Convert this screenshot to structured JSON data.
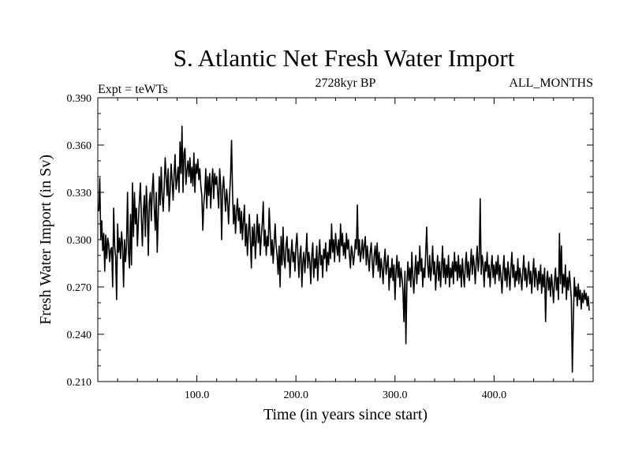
{
  "chart_data": {
    "type": "line",
    "title": "S. Atlantic Net Fresh Water Import",
    "subtitle_left": "Expt = teWTs",
    "subtitle_center": "2728kyr BP",
    "subtitle_right": "ALL_MONTHS",
    "xlabel": "Time (in years since start)",
    "ylabel": "Fresh Water Import (in Sv)",
    "xlim": [
      0,
      500
    ],
    "ylim": [
      0.21,
      0.39
    ],
    "x_ticks": [
      100,
      200,
      300,
      400
    ],
    "x_tick_labels": [
      "100.0",
      "200.0",
      "300.0",
      "400.0"
    ],
    "y_ticks": [
      0.21,
      0.24,
      0.27,
      0.3,
      0.33,
      0.36,
      0.39
    ],
    "y_tick_labels": [
      "0.210",
      "0.240",
      "0.270",
      "0.300",
      "0.330",
      "0.360",
      "0.390"
    ],
    "grid": false,
    "series": [
      {
        "name": "Fresh Water Import",
        "x_start": 1,
        "x_step": 1,
        "values": [
          0.318,
          0.339,
          0.3,
          0.312,
          0.293,
          0.304,
          0.28,
          0.303,
          0.288,
          0.301,
          0.297,
          0.286,
          0.294,
          0.295,
          0.27,
          0.32,
          0.296,
          0.289,
          0.262,
          0.31,
          0.292,
          0.301,
          0.288,
          0.305,
          0.296,
          0.27,
          0.3,
          0.286,
          0.296,
          0.33,
          0.292,
          0.282,
          0.316,
          0.284,
          0.336,
          0.302,
          0.33,
          0.31,
          0.32,
          0.296,
          0.312,
          0.325,
          0.336,
          0.314,
          0.296,
          0.318,
          0.328,
          0.302,
          0.334,
          0.318,
          0.29,
          0.324,
          0.33,
          0.312,
          0.332,
          0.342,
          0.32,
          0.306,
          0.33,
          0.292,
          0.316,
          0.34,
          0.322,
          0.346,
          0.328,
          0.318,
          0.333,
          0.352,
          0.34,
          0.328,
          0.345,
          0.318,
          0.331,
          0.348,
          0.338,
          0.325,
          0.341,
          0.354,
          0.332,
          0.338,
          0.346,
          0.33,
          0.362,
          0.342,
          0.372,
          0.33,
          0.355,
          0.358,
          0.335,
          0.344,
          0.35,
          0.34,
          0.352,
          0.336,
          0.346,
          0.334,
          0.355,
          0.33,
          0.348,
          0.342,
          0.351,
          0.338,
          0.345,
          0.334,
          0.328,
          0.306,
          0.323,
          0.33,
          0.345,
          0.32,
          0.34,
          0.328,
          0.342,
          0.32,
          0.336,
          0.345,
          0.326,
          0.342,
          0.335,
          0.34,
          0.33,
          0.32,
          0.345,
          0.335,
          0.3,
          0.332,
          0.34,
          0.328,
          0.318,
          0.332,
          0.324,
          0.31,
          0.328,
          0.34,
          0.363,
          0.33,
          0.31,
          0.322,
          0.304,
          0.318,
          0.326,
          0.312,
          0.32,
          0.304,
          0.318,
          0.3,
          0.312,
          0.322,
          0.296,
          0.31,
          0.29,
          0.304,
          0.316,
          0.3,
          0.282,
          0.308,
          0.296,
          0.31,
          0.288,
          0.3,
          0.316,
          0.298,
          0.31,
          0.29,
          0.302,
          0.31,
          0.324,
          0.296,
          0.306,
          0.29,
          0.302,
          0.296,
          0.32,
          0.305,
          0.29,
          0.3,
          0.285,
          0.298,
          0.31,
          0.296,
          0.29,
          0.278,
          0.296,
          0.27,
          0.302,
          0.284,
          0.308,
          0.288,
          0.282,
          0.296,
          0.302,
          0.286,
          0.294,
          0.276,
          0.29,
          0.3,
          0.286,
          0.292,
          0.28,
          0.296,
          0.304,
          0.29,
          0.276,
          0.29,
          0.296,
          0.27,
          0.286,
          0.292,
          0.279,
          0.29,
          0.304,
          0.282,
          0.292,
          0.286,
          0.272,
          0.29,
          0.298,
          0.276,
          0.288,
          0.282,
          0.296,
          0.274,
          0.288,
          0.3,
          0.284,
          0.29,
          0.276,
          0.294,
          0.288,
          0.298,
          0.28,
          0.292,
          0.284,
          0.3,
          0.288,
          0.31,
          0.292,
          0.3,
          0.286,
          0.304,
          0.296,
          0.29,
          0.3,
          0.286,
          0.31,
          0.296,
          0.304,
          0.29,
          0.298,
          0.288,
          0.304,
          0.294,
          0.3,
          0.29,
          0.282,
          0.296,
          0.292,
          0.284,
          0.29,
          0.3,
          0.294,
          0.322,
          0.29,
          0.3,
          0.286,
          0.292,
          0.3,
          0.288,
          0.296,
          0.302,
          0.284,
          0.296,
          0.288,
          0.28,
          0.292,
          0.298,
          0.286,
          0.276,
          0.29,
          0.296,
          0.284,
          0.298,
          0.28,
          0.292,
          0.276,
          0.288,
          0.282,
          0.272,
          0.286,
          0.294,
          0.278,
          0.284,
          0.29,
          0.268,
          0.282,
          0.276,
          0.288,
          0.274,
          0.284,
          0.262,
          0.28,
          0.29,
          0.276,
          0.286,
          0.27,
          0.282,
          0.276,
          0.268,
          0.248,
          0.28,
          0.234,
          0.272,
          0.286,
          0.274,
          0.282,
          0.27,
          0.292,
          0.276,
          0.266,
          0.28,
          0.29,
          0.272,
          0.286,
          0.278,
          0.296,
          0.28,
          0.288,
          0.27,
          0.282,
          0.276,
          0.292,
          0.308,
          0.284,
          0.276,
          0.29,
          0.274,
          0.282,
          0.296,
          0.278,
          0.286,
          0.268,
          0.28,
          0.29,
          0.274,
          0.286,
          0.27,
          0.282,
          0.296,
          0.276,
          0.288,
          0.272,
          0.284,
          0.276,
          0.29,
          0.27,
          0.282,
          0.276,
          0.286,
          0.272,
          0.292,
          0.28,
          0.286,
          0.274,
          0.29,
          0.276,
          0.284,
          0.27,
          0.288,
          0.278,
          0.27,
          0.284,
          0.292,
          0.276,
          0.286,
          0.274,
          0.282,
          0.294,
          0.278,
          0.29,
          0.284,
          0.272,
          0.286,
          0.296,
          0.28,
          0.288,
          0.326,
          0.278,
          0.29,
          0.284,
          0.27,
          0.286,
          0.28,
          0.292,
          0.276,
          0.284,
          0.27,
          0.282,
          0.29,
          0.276,
          0.284,
          0.272,
          0.286,
          0.278,
          0.29,
          0.274,
          0.284,
          0.276,
          0.266,
          0.28,
          0.29,
          0.274,
          0.282,
          0.27,
          0.286,
          0.278,
          0.268,
          0.282,
          0.292,
          0.276,
          0.284,
          0.27,
          0.28,
          0.274,
          0.288,
          0.272,
          0.282,
          0.276,
          0.268,
          0.28,
          0.29,
          0.274,
          0.282,
          0.27,
          0.278,
          0.286,
          0.272,
          0.28,
          0.266,
          0.278,
          0.288,
          0.27,
          0.282,
          0.276,
          0.268,
          0.28,
          0.272,
          0.284,
          0.266,
          0.278,
          0.27,
          0.282,
          0.248,
          0.274,
          0.28,
          0.268,
          0.276,
          0.264,
          0.278,
          0.27,
          0.26,
          0.274,
          0.282,
          0.268,
          0.276,
          0.262,
          0.304,
          0.272,
          0.296,
          0.266,
          0.278,
          0.27,
          0.284,
          0.262,
          0.276,
          0.268,
          0.28,
          0.272,
          0.262,
          0.216,
          0.248,
          0.276,
          0.264,
          0.27,
          0.258,
          0.272,
          0.262,
          0.268,
          0.256,
          0.266,
          0.26,
          0.268,
          0.262,
          0.266,
          0.258,
          0.264,
          0.255
        ]
      }
    ]
  }
}
